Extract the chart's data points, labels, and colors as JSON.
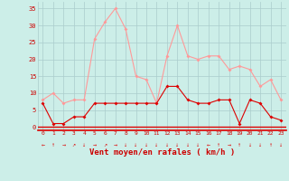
{
  "x": [
    0,
    1,
    2,
    3,
    4,
    5,
    6,
    7,
    8,
    9,
    10,
    11,
    12,
    13,
    14,
    15,
    16,
    17,
    18,
    19,
    20,
    21,
    22,
    23
  ],
  "rafales": [
    8,
    10,
    7,
    8,
    8,
    26,
    31,
    35,
    29,
    15,
    14,
    7,
    21,
    30,
    21,
    20,
    21,
    21,
    17,
    18,
    17,
    12,
    14,
    8
  ],
  "moyen": [
    7,
    1,
    1,
    3,
    3,
    7,
    7,
    7,
    7,
    7,
    7,
    7,
    12,
    12,
    8,
    7,
    7,
    8,
    8,
    1,
    8,
    7,
    3,
    2
  ],
  "line_color_rafales": "#ff9999",
  "line_color_moyen": "#dd0000",
  "bg_color": "#cceee8",
  "grid_color": "#aacccc",
  "xlabel": "Vent moyen/en rafales ( km/h )",
  "xlabel_color": "#cc0000",
  "tick_color": "#cc0000",
  "ylim": [
    -1,
    37
  ],
  "yticks": [
    0,
    5,
    10,
    15,
    20,
    25,
    30,
    35
  ],
  "marker": "D",
  "markersize": 2.0,
  "arrow_symbols": [
    "←",
    "↑",
    "→",
    "↗",
    "↓",
    "→",
    "↗",
    "→",
    "↓",
    "↓",
    "↓",
    "↓",
    "↓",
    "↓",
    "↓",
    "↓",
    "←",
    "↑",
    "→",
    "↑",
    "↓",
    "↓",
    "↑",
    "↓"
  ]
}
